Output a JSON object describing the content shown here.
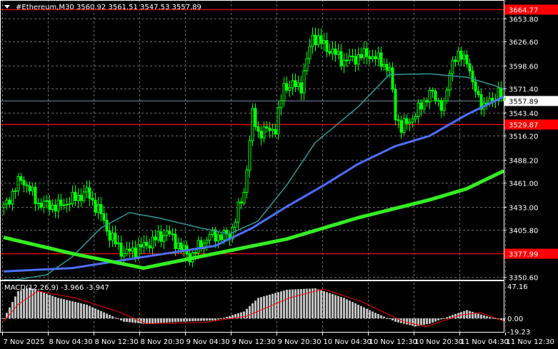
{
  "title": "#Ethereum,M30  3560.92 3561.51 3547.53 3557.89",
  "macd_label": "MACD(12,26,9) -3.966 -3.947",
  "chart_data": [
    {
      "type": "candlestick",
      "symbol": "#Ethereum",
      "timeframe": "M30",
      "ohlc_last": {
        "open": 3560.92,
        "high": 3561.51,
        "low": 3547.53,
        "close": 3557.89
      },
      "current_price": "3557.89",
      "ylim": [
        3350.6,
        3653.8
      ],
      "y_ticks": [
        "3653.80",
        "3626.60",
        "3598.60",
        "3571.40",
        "3543.40",
        "3516.20",
        "3488.20",
        "3461.00",
        "3433.00",
        "3405.80",
        "3350.60"
      ],
      "x_ticks": [
        "7 Nov 2025",
        "8 Nov 04:30",
        "8 Nov 12:30",
        "8 Nov 20:30",
        "9 Nov 04:30",
        "9 Nov 12:30",
        "9 Nov 20:30",
        "10 Nov 04:30",
        "10 Nov 12:30",
        "10 Nov 20:30",
        "11 Nov 04:30",
        "11 Nov 12:30"
      ],
      "grid": true,
      "horizontal_lines": [
        {
          "value": "3664.77",
          "color": "#ff0000"
        },
        {
          "value": "3529.87",
          "color": "#ff0000"
        },
        {
          "value": "3377.99",
          "color": "#ff0000"
        }
      ],
      "candle_color": "#00ff00",
      "price_path": [
        [
          "7 Nov 20:30",
          3432
        ],
        [
          "7 Nov 23:30",
          3466
        ],
        [
          "8 Nov 00:30",
          3458
        ],
        [
          "8 Nov 02:30",
          3437
        ],
        [
          "8 Nov 06:00",
          3433
        ],
        [
          "8 Nov 11:00",
          3450
        ],
        [
          "8 Nov 13:30",
          3424
        ],
        [
          "8 Nov 15:00",
          3399
        ],
        [
          "8 Nov 17:30",
          3378
        ],
        [
          "8 Nov 21:00",
          3387
        ],
        [
          "9 Nov 01:00",
          3403
        ],
        [
          "9 Nov 05:00",
          3374
        ],
        [
          "9 Nov 08:30",
          3399
        ],
        [
          "9 Nov 12:00",
          3399
        ],
        [
          "9 Nov 14:30",
          3450
        ],
        [
          "9 Nov 16:00",
          3541
        ],
        [
          "9 Nov 17:00",
          3520
        ],
        [
          "9 Nov 20:00",
          3525
        ],
        [
          "9 Nov 21:30",
          3575
        ],
        [
          "10 Nov 00:30",
          3575
        ],
        [
          "10 Nov 02:30",
          3634
        ],
        [
          "10 Nov 05:30",
          3617
        ],
        [
          "10 Nov 08:00",
          3604
        ],
        [
          "10 Nov 12:00",
          3612
        ],
        [
          "10 Nov 14:30",
          3604
        ],
        [
          "10 Nov 16:00",
          3592
        ],
        [
          "10 Nov 17:00",
          3541
        ],
        [
          "10 Nov 18:00",
          3525
        ],
        [
          "10 Nov 20:30",
          3541
        ],
        [
          "10 Nov 23:00",
          3567
        ],
        [
          "11 Nov 01:30",
          3550
        ],
        [
          "11 Nov 03:00",
          3608
        ],
        [
          "11 Nov 05:30",
          3608
        ],
        [
          "11 Nov 06:30",
          3575
        ],
        [
          "11 Nov 08:30",
          3550
        ],
        [
          "11 Nov 11:00",
          3567
        ],
        [
          "11 Nov 12:00",
          3557.89
        ]
      ],
      "moving_averages": [
        {
          "color": "#2f9a9a",
          "width": 1.5,
          "values": [
            [
              "7 Nov 20:30",
              3345
            ],
            [
              "8 Nov 04:00",
              3353
            ],
            [
              "8 Nov 08:30",
              3374
            ],
            [
              "8 Nov 13:30",
              3408
            ],
            [
              "8 Nov 18:30",
              3426
            ],
            [
              "8 Nov 23:30",
              3420
            ],
            [
              "9 Nov 07:00",
              3408
            ],
            [
              "9 Nov 12:00",
              3401
            ],
            [
              "9 Nov 17:00",
              3416
            ],
            [
              "9 Nov 22:00",
              3458
            ],
            [
              "10 Nov 03:00",
              3508
            ],
            [
              "10 Nov 10:30",
              3550
            ],
            [
              "10 Nov 16:00",
              3588
            ],
            [
              "10 Nov 23:00",
              3589
            ],
            [
              "11 Nov 05:30",
              3585
            ],
            [
              "11 Nov 10:30",
              3575
            ],
            [
              "11 Nov 12:00",
              3571
            ]
          ]
        },
        {
          "color": "#4f6fff",
          "width": 3,
          "values": [
            [
              "7 Nov 20:30",
              3357
            ],
            [
              "8 Nov 08:30",
              3361
            ],
            [
              "8 Nov 21:00",
              3374
            ],
            [
              "9 Nov 09:30",
              3387
            ],
            [
              "9 Nov 16:00",
              3408
            ],
            [
              "9 Nov 22:00",
              3433
            ],
            [
              "10 Nov 04:30",
              3458
            ],
            [
              "10 Nov 10:30",
              3483
            ],
            [
              "10 Nov 17:00",
              3504
            ],
            [
              "10 Nov 23:00",
              3516
            ],
            [
              "11 Nov 05:30",
              3541
            ],
            [
              "11 Nov 12:00",
              3562
            ]
          ]
        },
        {
          "color": "#33ee22",
          "width": 5,
          "values": [
            [
              "7 Nov 20:30",
              3397
            ],
            [
              "8 Nov 08:30",
              3378
            ],
            [
              "8 Nov 21:00",
              3361
            ],
            [
              "9 Nov 09:30",
              3378
            ],
            [
              "9 Nov 22:00",
              3395
            ],
            [
              "10 Nov 10:30",
              3420
            ],
            [
              "10 Nov 23:00",
              3441
            ],
            [
              "11 Nov 05:30",
              3454
            ],
            [
              "11 Nov 12:00",
              3475
            ]
          ]
        }
      ]
    },
    {
      "type": "bar",
      "indicator": "MACD(12,26,9)",
      "ylim": [
        -19.23,
        47.16
      ],
      "y_ticks": [
        "47.16",
        "0.00",
        "-19.23"
      ],
      "histogram_color": "#c0c0c0",
      "signal_color": "#ff0000",
      "histogram": [
        [
          "7 Nov 20:30",
          0
        ],
        [
          "7 Nov 23:00",
          40
        ],
        [
          "8 Nov 01:00",
          45
        ],
        [
          "8 Nov 06:00",
          30
        ],
        [
          "8 Nov 11:00",
          20
        ],
        [
          "8 Nov 15:00",
          5
        ],
        [
          "8 Nov 17:30",
          -5
        ],
        [
          "8 Nov 21:00",
          -8
        ],
        [
          "9 Nov 03:30",
          -5
        ],
        [
          "9 Nov 09:30",
          -3
        ],
        [
          "9 Nov 14:30",
          10
        ],
        [
          "9 Nov 17:00",
          30
        ],
        [
          "9 Nov 22:00",
          42
        ],
        [
          "10 Nov 03:00",
          44
        ],
        [
          "10 Nov 08:00",
          30
        ],
        [
          "10 Nov 13:00",
          10
        ],
        [
          "10 Nov 17:00",
          -5
        ],
        [
          "10 Nov 20:30",
          -12
        ],
        [
          "10 Nov 23:00",
          -8
        ],
        [
          "11 Nov 03:00",
          5
        ],
        [
          "11 Nov 05:30",
          12
        ],
        [
          "11 Nov 09:00",
          3
        ],
        [
          "11 Nov 12:00",
          -3.966
        ]
      ],
      "signal": [
        [
          "7 Nov 20:30",
          -5
        ],
        [
          "7 Nov 23:00",
          20
        ],
        [
          "8 Nov 02:30",
          40
        ],
        [
          "8 Nov 09:00",
          30
        ],
        [
          "8 Nov 16:30",
          10
        ],
        [
          "8 Nov 21:30",
          -8
        ],
        [
          "9 Nov 07:30",
          -6
        ],
        [
          "9 Nov 15:00",
          3
        ],
        [
          "9 Nov 22:30",
          30
        ],
        [
          "10 Nov 04:30",
          43
        ],
        [
          "10 Nov 11:00",
          25
        ],
        [
          "10 Nov 18:30",
          -5
        ],
        [
          "10 Nov 22:30",
          -12
        ],
        [
          "11 Nov 04:30",
          5
        ],
        [
          "11 Nov 08:00",
          8
        ],
        [
          "11 Nov 12:00",
          -3.947
        ]
      ]
    }
  ]
}
